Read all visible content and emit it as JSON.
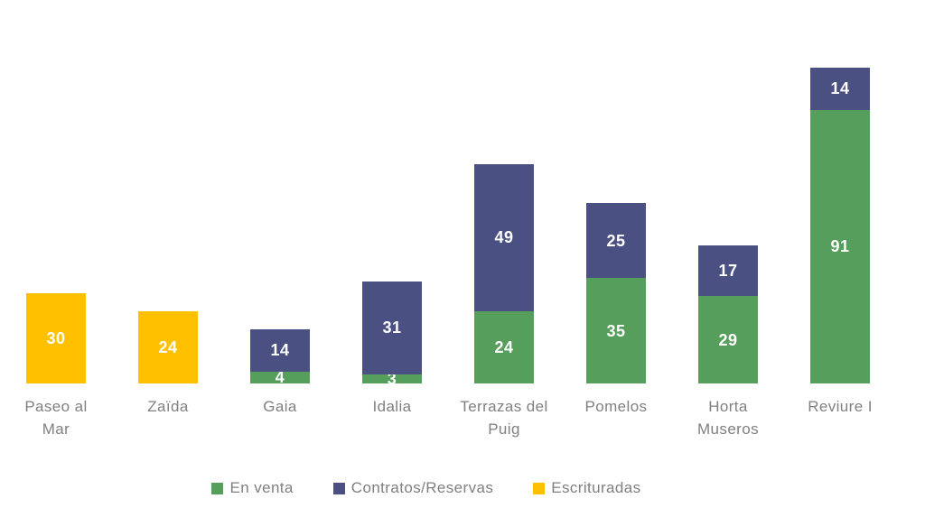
{
  "chart_data": {
    "type": "bar",
    "stacked": true,
    "title": "",
    "xlabel": "",
    "ylabel": "",
    "grid": false,
    "legend_position": "bottom",
    "background": "#ffffff",
    "axis_label_color": "#808080",
    "value_label_color": "#ffffff",
    "ylim": [
      0,
      105
    ],
    "categories": [
      "Paseo al Mar",
      "Zaïda",
      "Gaia",
      "Idalia",
      "Terrazas del Puig",
      "Pomelos",
      "Horta Museros",
      "Reviure I"
    ],
    "tick_lines": [
      [
        "Paseo al",
        "Mar"
      ],
      [
        "Zaïda"
      ],
      [
        "Gaia"
      ],
      [
        "Idalia"
      ],
      [
        "Terrazas del",
        "Puig"
      ],
      [
        "Pomelos"
      ],
      [
        "Horta",
        "Museros"
      ],
      [
        "Reviure I"
      ]
    ],
    "series": [
      {
        "name": "En venta",
        "color": "#569E5C",
        "values": [
          0,
          0,
          4,
          3,
          24,
          35,
          29,
          91
        ]
      },
      {
        "name": "Contratos/Reservas",
        "color": "#4A5182",
        "values": [
          0,
          0,
          14,
          31,
          49,
          25,
          17,
          14
        ]
      },
      {
        "name": "Escrituradas",
        "color": "#FFC000",
        "values": [
          30,
          24,
          0,
          0,
          0,
          0,
          0,
          0
        ]
      }
    ]
  }
}
